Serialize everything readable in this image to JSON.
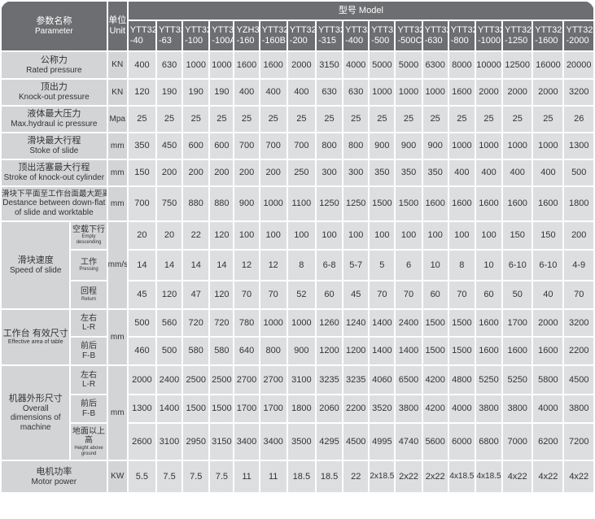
{
  "header": {
    "param_cn": "参数名称",
    "param_en": "Parameter",
    "unit_cn": "单位",
    "unit_en": "Unit",
    "model_title": "型号 Model",
    "models": [
      [
        "YTT32",
        "-40"
      ],
      [
        "YTT32",
        "-63"
      ],
      [
        "YTT32",
        "-100"
      ],
      [
        "YTT32",
        "-100A"
      ],
      [
        "YZH32",
        "-160"
      ],
      [
        "YTT32",
        "-160B"
      ],
      [
        "YTT32",
        "-200"
      ],
      [
        "YTT32",
        "-315"
      ],
      [
        "YTT32",
        "-400"
      ],
      [
        "YTT32",
        "-500"
      ],
      [
        "YTT32",
        "-500C"
      ],
      [
        "YTT32",
        "-630"
      ],
      [
        "YTT32",
        "-800"
      ],
      [
        "YTT32",
        "-1000"
      ],
      [
        "YTT32",
        "-1250"
      ],
      [
        "YTT32",
        "-1600"
      ],
      [
        "YTT32",
        "-2000"
      ]
    ]
  },
  "groups": [
    {
      "cn": "公称力",
      "en": "Rated pressure",
      "unit": "KN",
      "rows": [
        {
          "values": [
            "400",
            "630",
            "1000",
            "1000",
            "1600",
            "1600",
            "2000",
            "3150",
            "4000",
            "5000",
            "5000",
            "6300",
            "8000",
            "10000",
            "12500",
            "16000",
            "20000"
          ]
        }
      ]
    },
    {
      "cn": "顶出力",
      "en": "Knock-out pressure",
      "unit": "KN",
      "rows": [
        {
          "values": [
            "120",
            "190",
            "190",
            "190",
            "400",
            "400",
            "400",
            "630",
            "630",
            "1000",
            "1000",
            "1000",
            "1600",
            "2000",
            "2000",
            "2000",
            "3200"
          ]
        }
      ]
    },
    {
      "cn": "液体最大压力",
      "en": "Max.hydraul ic pressure",
      "unit": "Mpa",
      "rows": [
        {
          "values": [
            "25",
            "25",
            "25",
            "25",
            "25",
            "25",
            "25",
            "25",
            "25",
            "25",
            "25",
            "25",
            "25",
            "25",
            "25",
            "25",
            "26"
          ]
        }
      ]
    },
    {
      "cn": "滑块最大行程",
      "en": "Stoke of slide",
      "unit": "mm",
      "rows": [
        {
          "values": [
            "350",
            "450",
            "600",
            "600",
            "700",
            "700",
            "700",
            "800",
            "800",
            "900",
            "900",
            "900",
            "1000",
            "1000",
            "1000",
            "1000",
            "1300"
          ]
        }
      ]
    },
    {
      "cn": "顶出活塞最大行程",
      "en": "Stroke of knock-out cylinder",
      "unit": "mm",
      "rows": [
        {
          "values": [
            "150",
            "200",
            "200",
            "200",
            "200",
            "200",
            "250",
            "300",
            "300",
            "350",
            "350",
            "350",
            "400",
            "400",
            "400",
            "400",
            "500"
          ]
        }
      ]
    },
    {
      "cn": "滑块下平面至工作台面最大距离",
      "en": "Destance between down-flat of slide and worktable",
      "unit": "mm",
      "rows": [
        {
          "values": [
            "700",
            "750",
            "880",
            "880",
            "900",
            "1000",
            "1100",
            "1250",
            "1250",
            "1500",
            "1500",
            "1600",
            "1600",
            "1600",
            "1600",
            "1600",
            "1800"
          ]
        }
      ]
    },
    {
      "cn": "滑块速度",
      "en": "Speed of slide",
      "unit": "mm/s",
      "rows": [
        {
          "sub_cn": "空载下行",
          "sub_en": "Empty descending",
          "values": [
            "20",
            "20",
            "22",
            "120",
            "100",
            "100",
            "100",
            "100",
            "100",
            "100",
            "100",
            "100",
            "100",
            "100",
            "150",
            "150",
            "200"
          ]
        },
        {
          "sub_cn": "工作",
          "sub_en": "Pressing",
          "values": [
            "14",
            "14",
            "14",
            "14",
            "12",
            "12",
            "8",
            "6-8",
            "5-7",
            "5",
            "6",
            "10",
            "8",
            "10",
            "6-10",
            "6-10",
            "4-9"
          ]
        },
        {
          "sub_cn": "回程",
          "sub_en": "Return",
          "values": [
            "45",
            "120",
            "47",
            "120",
            "70",
            "70",
            "52",
            "60",
            "45",
            "70",
            "70",
            "60",
            "70",
            "60",
            "50",
            "40",
            "70"
          ]
        }
      ]
    },
    {
      "cn": "工作台 有效尺寸",
      "en": "Effective area of table",
      "unit": "mm",
      "rows": [
        {
          "sub_cn": "左右",
          "sub_en": "L-R",
          "values": [
            "500",
            "560",
            "720",
            "720",
            "780",
            "1000",
            "1000",
            "1260",
            "1240",
            "1400",
            "2400",
            "1500",
            "1500",
            "1600",
            "1700",
            "2000",
            "3200"
          ]
        },
        {
          "sub_cn": "前后",
          "sub_en": "F-B",
          "values": [
            "460",
            "500",
            "580",
            "580",
            "640",
            "800",
            "900",
            "1200",
            "1200",
            "1400",
            "1400",
            "1500",
            "1500",
            "1600",
            "1600",
            "1600",
            "2200"
          ]
        }
      ]
    },
    {
      "cn": "机器外形尺寸",
      "en": "Overall dimensions of machine",
      "unit": "mm",
      "rows": [
        {
          "sub_cn": "左右",
          "sub_en": "L-R",
          "values": [
            "2000",
            "2400",
            "2500",
            "2500",
            "2700",
            "2700",
            "3100",
            "3235",
            "3235",
            "4060",
            "6500",
            "4200",
            "4800",
            "5250",
            "5250",
            "5800",
            "4500"
          ]
        },
        {
          "sub_cn": "前后",
          "sub_en": "F-B",
          "values": [
            "1300",
            "1400",
            "1500",
            "1500",
            "1700",
            "1700",
            "1800",
            "2060",
            "2200",
            "3520",
            "3800",
            "4200",
            "4000",
            "3800",
            "3800",
            "4000",
            "3800"
          ]
        },
        {
          "sub_cn": "地面以上高",
          "sub_en": "Height above ground",
          "values": [
            "2600",
            "3100",
            "2950",
            "3150",
            "3400",
            "3400",
            "3500",
            "4295",
            "4500",
            "4995",
            "4740",
            "5600",
            "6000",
            "6800",
            "7000",
            "6200",
            "7200"
          ]
        }
      ]
    },
    {
      "cn": "电机功率",
      "en": "Motor power",
      "unit": "KW",
      "rows": [
        {
          "values": [
            "5.5",
            "7.5",
            "7.5",
            "7.5",
            "11",
            "11",
            "18.5",
            "18.5",
            "22",
            "2x18.5",
            "2x22",
            "2x22",
            "4x18.5",
            "4x18.5",
            "4x22",
            "4x22",
            "4x22"
          ]
        }
      ]
    }
  ]
}
